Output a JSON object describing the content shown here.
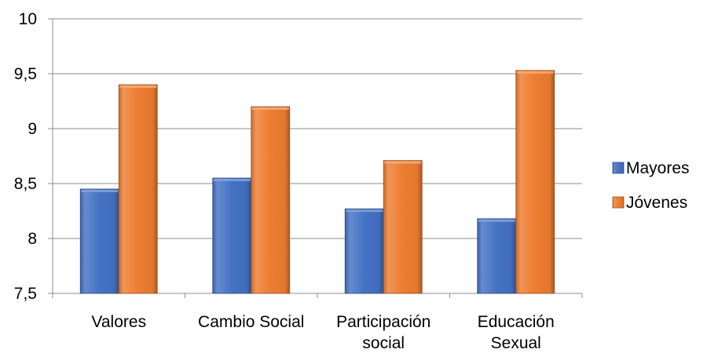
{
  "chart_data": {
    "type": "bar",
    "title": "",
    "xlabel": "",
    "ylabel": "",
    "categories": [
      [
        "Valores"
      ],
      [
        "Cambio Social"
      ],
      [
        "Participación",
        "social"
      ],
      [
        "Educación",
        "Sexual"
      ]
    ],
    "series": [
      {
        "name": "Mayores",
        "color": "#4472C4",
        "values": [
          8.45,
          8.55,
          8.27,
          8.18
        ]
      },
      {
        "name": "Jóvenes",
        "color": "#ED7D31",
        "values": [
          9.4,
          9.2,
          8.71,
          9.53
        ]
      }
    ],
    "ylim": [
      7.5,
      10
    ],
    "yticks": [
      7.5,
      8,
      8.5,
      9,
      9.5,
      10
    ],
    "ytick_labels": [
      "7,5",
      "8",
      "8,5",
      "9",
      "9,5",
      "10"
    ],
    "grid": true,
    "legend_position": "right",
    "bar_style": "3d-bevel"
  }
}
